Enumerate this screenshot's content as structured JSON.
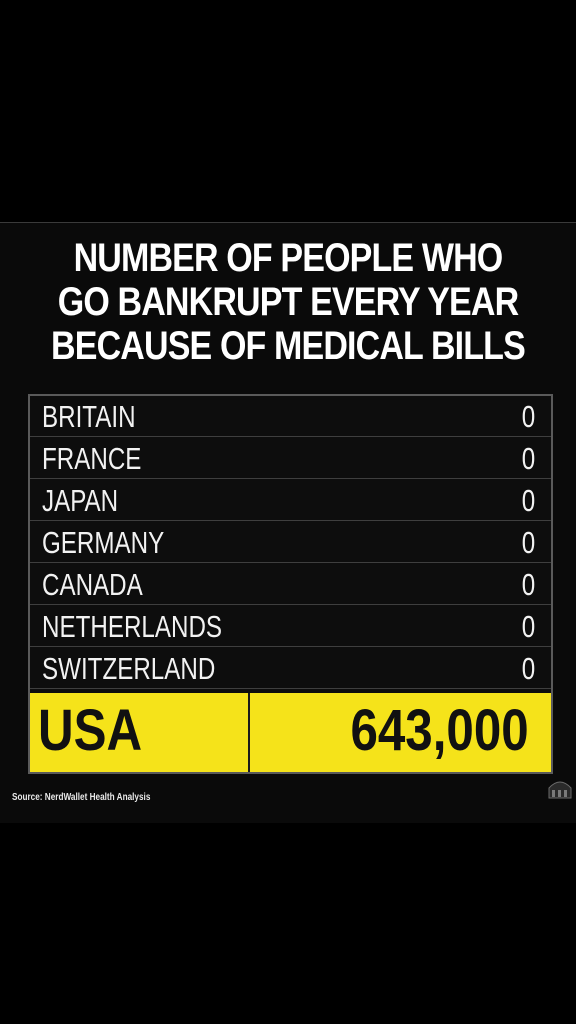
{
  "chart_data": {
    "type": "table",
    "title_lines": [
      "NUMBER OF PEOPLE WHO",
      "GO BANKRUPT EVERY YEAR",
      "BECAUSE OF MEDICAL BILLS"
    ],
    "rows": [
      {
        "country": "BRITAIN",
        "value": "0"
      },
      {
        "country": "FRANCE",
        "value": "0"
      },
      {
        "country": "JAPAN",
        "value": "0"
      },
      {
        "country": "GERMANY",
        "value": "0"
      },
      {
        "country": "CANADA",
        "value": "0"
      },
      {
        "country": "NETHERLANDS",
        "value": "0"
      },
      {
        "country": "SWITZERLAND",
        "value": "0"
      }
    ],
    "highlight": {
      "country": "USA",
      "value": "643,000"
    },
    "source": "Source: NerdWallet Health Analysis"
  },
  "colors": {
    "background": "#000000",
    "highlight": "#f5e31a",
    "text": "#ffffff"
  },
  "icons": {
    "watermark": "watermark-logo-icon"
  }
}
